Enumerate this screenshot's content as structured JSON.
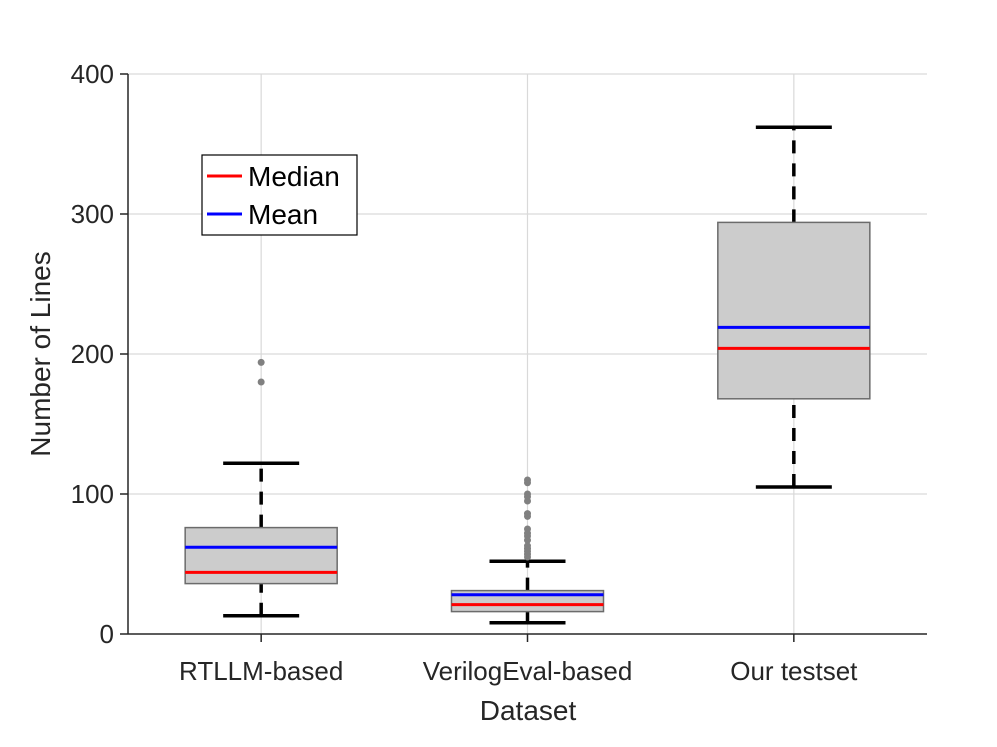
{
  "chart_data": {
    "type": "box",
    "xlabel": "Dataset",
    "ylabel": "Number of Lines",
    "ylim": [
      0,
      400
    ],
    "yticks": [
      "0",
      "100",
      "200",
      "300",
      "400"
    ],
    "grid": true,
    "legend": {
      "placement": "top-left",
      "entries": [
        {
          "label": "Median",
          "color": "#ff0000"
        },
        {
          "label": "Mean",
          "color": "#0000ff"
        }
      ]
    },
    "colors": {
      "box_fill": "#cccccc",
      "box_edge": "#6b6b6b",
      "whisker": "#000000",
      "outlier": "#808080",
      "grid": "#d9d9d9",
      "axis": "#262626"
    },
    "series": [
      {
        "name": "RTLLM-based",
        "whisker_low": 13,
        "q1": 36,
        "median": 44,
        "mean": 62,
        "q3": 76,
        "whisker_high": 122,
        "outliers": [
          180,
          194
        ]
      },
      {
        "name": "VerilogEval-based",
        "whisker_low": 8,
        "q1": 16,
        "median": 21,
        "mean": 28,
        "q3": 31,
        "whisker_high": 52,
        "outliers": [
          55,
          57,
          59,
          61,
          63,
          67,
          70,
          72,
          75,
          84,
          86,
          95,
          98,
          100,
          108,
          110
        ]
      },
      {
        "name": "Our testset",
        "whisker_low": 105,
        "q1": 168,
        "median": 204,
        "mean": 219,
        "q3": 294,
        "whisker_high": 362,
        "outliers": []
      }
    ]
  }
}
